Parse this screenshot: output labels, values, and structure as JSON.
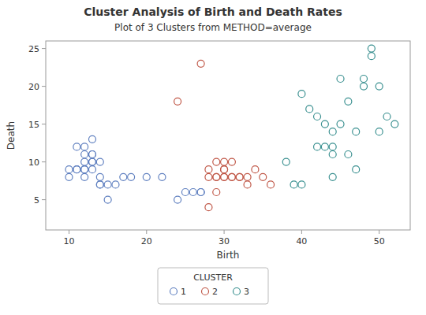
{
  "chart_data": {
    "type": "scatter",
    "title": "Cluster Analysis of Birth and Death Rates",
    "subtitle": "Plot of 3 Clusters from METHOD=average",
    "x_label": "Birth",
    "y_label": "Death",
    "xlim": [
      7,
      54
    ],
    "ylim": [
      1,
      26
    ],
    "xticks": [
      10,
      20,
      30,
      40,
      50
    ],
    "yticks": [
      5,
      10,
      15,
      20,
      25
    ],
    "grid": false,
    "legend": "bottom",
    "legend_title": "CLUSTER",
    "marker": "open-circle",
    "series": [
      {
        "name": "1",
        "color": "#6080C0",
        "x": [
          10,
          10,
          11,
          11,
          11,
          12,
          12,
          12,
          12,
          12,
          12,
          13,
          13,
          13,
          13,
          13,
          13,
          14,
          14,
          14,
          14,
          15,
          15,
          16,
          17,
          18,
          20,
          22,
          24,
          25,
          26,
          27,
          27
        ],
        "values": [
          9,
          8,
          9,
          12,
          9,
          12,
          11,
          10,
          9,
          9,
          8,
          13,
          11,
          11,
          10,
          10,
          9,
          10,
          8,
          7,
          7,
          7,
          5,
          7,
          8,
          8,
          8,
          8,
          5,
          6,
          6,
          6,
          6
        ]
      },
      {
        "name": "2",
        "color": "#C05848",
        "x": [
          24,
          27,
          28,
          28,
          28,
          29,
          29,
          29,
          29,
          30,
          30,
          30,
          30,
          30,
          31,
          31,
          31,
          32,
          32,
          33,
          33,
          34,
          35,
          36
        ],
        "values": [
          18,
          23,
          4,
          9,
          8,
          10,
          8,
          8,
          6,
          10,
          9,
          9,
          8,
          8,
          10,
          8,
          8,
          8,
          8,
          8,
          7,
          9,
          8,
          7
        ]
      },
      {
        "name": "3",
        "color": "#3A9090",
        "x": [
          38,
          39,
          40,
          40,
          41,
          42,
          42,
          43,
          43,
          44,
          44,
          44,
          44,
          45,
          45,
          46,
          46,
          47,
          47,
          48,
          48,
          49,
          49,
          50,
          50,
          51,
          52
        ],
        "values": [
          10,
          7,
          19,
          7,
          17,
          16,
          12,
          15,
          12,
          14,
          12,
          11,
          8,
          21,
          15,
          18,
          11,
          14,
          9,
          21,
          20,
          25,
          24,
          20,
          14,
          16,
          15
        ]
      }
    ]
  }
}
